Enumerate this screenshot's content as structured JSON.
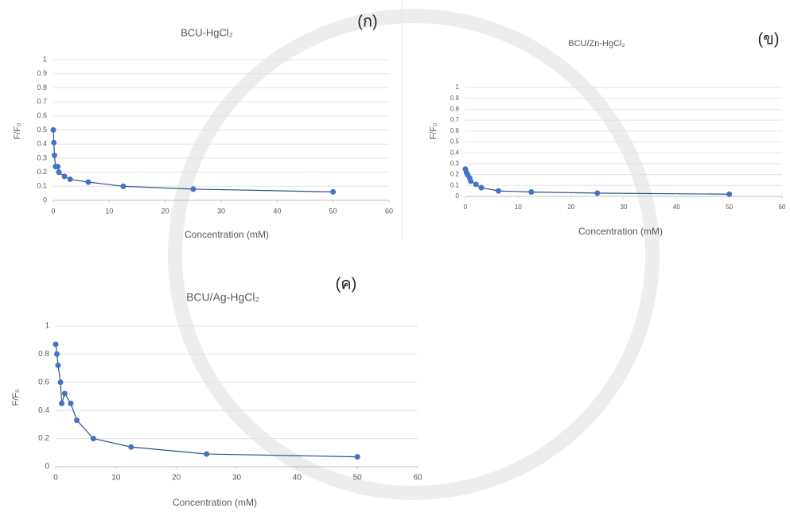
{
  "chart_data": [
    {
      "type": "line",
      "title": "BCU-HgCl₂",
      "panel_label": "(ก)",
      "x_label": "Concentration (mM)",
      "y_label": "F/F₀",
      "x": [
        0,
        0.1,
        0.2,
        0.4,
        0.8,
        1,
        2,
        3,
        6.25,
        12.5,
        25,
        50
      ],
      "values": [
        0.5,
        0.41,
        0.32,
        0.24,
        0.24,
        0.2,
        0.17,
        0.15,
        0.13,
        0.1,
        0.08,
        0.06
      ],
      "color": "#4472c4",
      "xlim": [
        0,
        60
      ],
      "xticks": [
        0,
        10,
        20,
        30,
        40,
        50,
        60
      ],
      "ylim": [
        0,
        1
      ],
      "yticks": [
        0,
        0.1,
        0.2,
        0.3,
        0.4,
        0.5,
        0.6,
        0.7,
        0.8,
        0.9,
        1
      ],
      "grid": true
    },
    {
      "type": "line",
      "title": "BCU/Zn-HgCl₂",
      "panel_label": "(ข)",
      "x_label": "Concentration (mM)",
      "y_label": "F/F₀",
      "x": [
        0,
        0.2,
        0.4,
        0.8,
        1,
        2,
        3,
        6.25,
        12.5,
        25,
        50
      ],
      "values": [
        0.25,
        0.22,
        0.2,
        0.17,
        0.14,
        0.11,
        0.08,
        0.05,
        0.04,
        0.03,
        0.02
      ],
      "color": "#4472c4",
      "xlim": [
        0,
        60
      ],
      "xticks": [
        0,
        10,
        20,
        30,
        40,
        50,
        60
      ],
      "ylim": [
        0,
        1
      ],
      "yticks": [
        0,
        0.1,
        0.2,
        0.3,
        0.4,
        0.5,
        0.6,
        0.7,
        0.8,
        0.9,
        1
      ],
      "grid": true
    },
    {
      "type": "line",
      "title": "BCU/Ag-HgCl₂",
      "panel_label": "(ค)",
      "x_label": "Concentration (mM)",
      "y_label": "F/F₀",
      "x": [
        0,
        0.2,
        0.4,
        0.8,
        1,
        1.5,
        2.5,
        3.5,
        6.25,
        12.5,
        25,
        50
      ],
      "values": [
        0.87,
        0.8,
        0.72,
        0.6,
        0.45,
        0.52,
        0.45,
        0.33,
        0.2,
        0.14,
        0.09,
        0.07
      ],
      "color": "#4472c4",
      "xlim": [
        0,
        60
      ],
      "xticks": [
        0,
        10,
        20,
        30,
        40,
        50,
        60
      ],
      "ylim": [
        0,
        1
      ],
      "yticks": [
        0,
        0.2,
        0.4,
        0.6,
        0.8,
        1
      ],
      "grid": true
    }
  ]
}
